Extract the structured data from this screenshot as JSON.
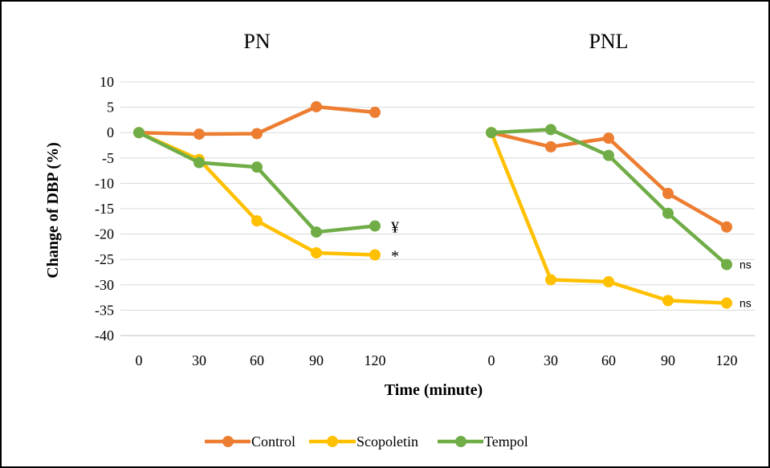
{
  "chart_data": {
    "type": "line",
    "xlabel": "Time (minute)",
    "ylabel": "Change of DBP (%)",
    "ylim": [
      -40,
      10
    ],
    "yticks": [
      10,
      5,
      0,
      -5,
      -10,
      -15,
      -20,
      -25,
      -30,
      -35,
      -40
    ],
    "grid": true,
    "legend": "bottom",
    "panels": [
      {
        "title": "PN",
        "x": [
          0,
          30,
          60,
          90,
          120
        ],
        "series": [
          {
            "name": "Control",
            "color": "#ED7D31",
            "values": [
              0,
              -0.3,
              -0.2,
              5.1,
              4.0
            ],
            "end_label": ""
          },
          {
            "name": "Scopoletin",
            "color": "#FFC000",
            "values": [
              0,
              -5.3,
              -17.4,
              -23.7,
              -24.1
            ],
            "end_label": "*"
          },
          {
            "name": "Tempol",
            "color": "#70AD47",
            "values": [
              0,
              -5.9,
              -6.8,
              -19.6,
              -18.4
            ],
            "end_label": "¥"
          }
        ]
      },
      {
        "title": "PNL",
        "x": [
          0,
          30,
          60,
          90,
          120
        ],
        "series": [
          {
            "name": "Control",
            "color": "#ED7D31",
            "values": [
              0,
              -2.8,
              -1.1,
              -12.0,
              -18.6
            ],
            "end_label": ""
          },
          {
            "name": "Scopoletin",
            "color": "#FFC000",
            "values": [
              0,
              -29.0,
              -29.4,
              -33.1,
              -33.6
            ],
            "end_label": "ns"
          },
          {
            "name": "Tempol",
            "color": "#70AD47",
            "values": [
              0,
              0.6,
              -4.5,
              -15.9,
              -26.0
            ],
            "end_label": "ns"
          }
        ]
      }
    ],
    "legend_entries": [
      {
        "name": "Control",
        "color": "#ED7D31"
      },
      {
        "name": "Scopoletin",
        "color": "#FFC000"
      },
      {
        "name": "Tempol",
        "color": "#70AD47"
      }
    ]
  }
}
